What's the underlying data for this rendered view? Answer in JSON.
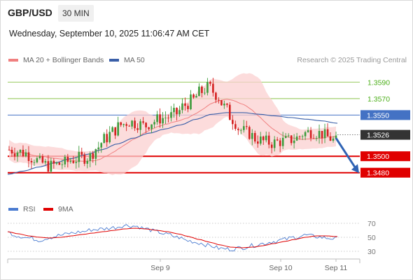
{
  "header": {
    "symbol": "GBP/USD",
    "timeframe": "30 MIN",
    "datetime": "Wednesday, September 10, 2025 11:06:47 AM CET",
    "research": "Research © 2025 Trading Central"
  },
  "legend": {
    "ma20": "MA 20 + Bollinger Bands",
    "ma50": "MA 50",
    "rsi": "RSI",
    "ma9": "9MA"
  },
  "colors": {
    "candle_up": "#3c9c3c",
    "candle_down": "#d42020",
    "bollinger_fill": "#fbd0d0",
    "ma20": "#f08080",
    "ma50": "#3a5fa8",
    "resistance": "#8bc34a",
    "pivot": "#4472c4",
    "support": "#e00000",
    "current": "#333333",
    "rsi": "#4a7bd0",
    "rsi_ma": "#e00000"
  },
  "chart_data": [
    {
      "type": "candlestick",
      "symbol": "GBP/USD",
      "timeframe": "30 MIN",
      "ylim": [
        1.3467,
        1.3609
      ],
      "x_ticks": [
        "Sep 9",
        "Sep 10",
        "Sep 11"
      ],
      "close_path": [
        1.3508,
        1.3506,
        1.3504,
        1.3498,
        1.3492,
        1.3488,
        1.349,
        1.3492,
        1.3496,
        1.3498,
        1.3499,
        1.351,
        1.3521,
        1.353,
        1.3538,
        1.3542,
        1.354,
        1.3537,
        1.3542,
        1.3546,
        1.3548,
        1.3552,
        1.3562,
        1.3568,
        1.3578,
        1.3584,
        1.3575,
        1.356,
        1.3545,
        1.3532,
        1.3528,
        1.3521,
        1.3518,
        1.3516,
        1.3518,
        1.3519,
        1.3522,
        1.3528,
        1.353,
        1.3528,
        1.3523,
        1.3518
      ],
      "levels": [
        {
          "label": "1.3590",
          "value": 1.359,
          "kind": "resistance"
        },
        {
          "label": "1.3570",
          "value": 1.357,
          "kind": "resistance"
        },
        {
          "label": "1.3550",
          "value": 1.355,
          "kind": "pivot"
        },
        {
          "label": "1.3526",
          "value": 1.3526,
          "kind": "current"
        },
        {
          "label": "1.3500",
          "value": 1.35,
          "kind": "support"
        },
        {
          "label": "1.3480",
          "value": 1.348,
          "kind": "support"
        }
      ],
      "ma50_path": [
        1.3478,
        1.3482,
        1.3487,
        1.3492,
        1.3497,
        1.3502,
        1.3508,
        1.3515,
        1.3522,
        1.3528,
        1.3533,
        1.3538,
        1.3545,
        1.3551,
        1.3553,
        1.3553,
        1.3551,
        1.3549,
        1.3547,
        1.3545,
        1.3543,
        1.354
      ],
      "forecast": {
        "from": 1.3522,
        "to": 1.3482
      }
    },
    {
      "type": "line",
      "name": "RSI",
      "ylim": [
        24,
        76
      ],
      "y_ticks": [
        70,
        50,
        30
      ],
      "rsi_path": [
        57,
        52,
        49,
        46,
        50,
        53,
        56,
        58,
        61,
        62,
        64,
        67,
        66,
        62,
        58,
        54,
        50,
        45,
        42,
        38,
        34,
        33,
        35,
        38,
        41,
        44,
        47,
        50,
        53,
        51,
        49,
        48
      ],
      "ma9_path": [
        58,
        55,
        52,
        50,
        49,
        50,
        52,
        54,
        56,
        58,
        60,
        62,
        63,
        62,
        60,
        58,
        55,
        51,
        47,
        43,
        39,
        36,
        35,
        36,
        38,
        41,
        44,
        47,
        50,
        52,
        52,
        51
      ]
    }
  ]
}
